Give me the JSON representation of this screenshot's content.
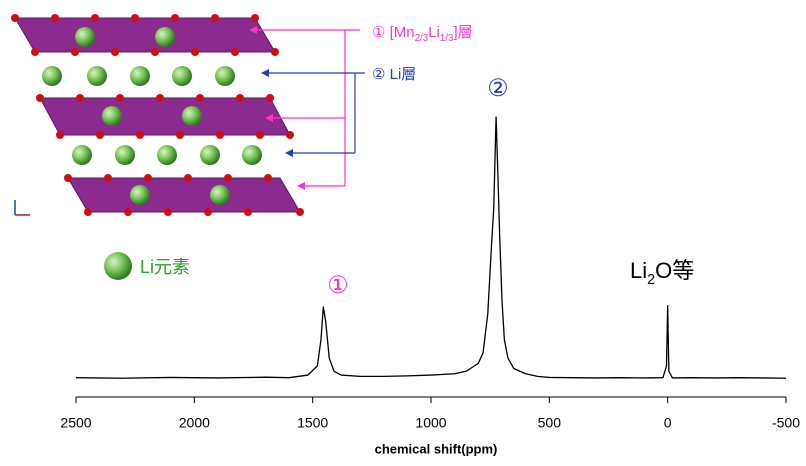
{
  "chart_data": {
    "type": "line",
    "xlabel": "chemical shift(ppm)",
    "xlim": [
      2500,
      -500
    ],
    "xticks": [
      2500,
      2000,
      1500,
      1000,
      500,
      0,
      -500
    ],
    "ylim": [
      0,
      100
    ],
    "x": [
      2500,
      2300,
      2100,
      1900,
      1700,
      1600,
      1520,
      1480,
      1465,
      1455,
      1445,
      1430,
      1410,
      1380,
      1300,
      1200,
      1100,
      1000,
      900,
      850,
      800,
      780,
      760,
      745,
      735,
      725,
      718,
      710,
      700,
      690,
      675,
      650,
      600,
      550,
      500,
      400,
      300,
      200,
      100,
      20,
      5,
      0,
      -5,
      -20,
      -100,
      -200,
      -300,
      -400,
      -500
    ],
    "series": [
      {
        "color": "#000000",
        "values": [
          0.5,
          0.3,
          0.6,
          0.4,
          0.7,
          0.5,
          1.5,
          5,
          15,
          27.5,
          22,
          8,
          3,
          1.5,
          1,
          1,
          1.2,
          1.5,
          2,
          3,
          6,
          10,
          25,
          50,
          65,
          100,
          80,
          55,
          30,
          15,
          8,
          4,
          2,
          1,
          0.6,
          0.5,
          0.4,
          0.5,
          0.4,
          0.5,
          5,
          28,
          3,
          0.4,
          0.5,
          0.4,
          0.5,
          0.4,
          0.3
        ]
      }
    ],
    "annotations": [
      {
        "parts": [
          "①"
        ],
        "color": "#ff33cc"
      },
      {
        "parts": [
          "②"
        ],
        "color": "#1f3fbf"
      },
      {
        "parts": [
          "Li",
          "2",
          "O等"
        ],
        "color": "#000000"
      },
      {
        "parts": [
          "① [Mn",
          "2/3",
          "Li",
          "1/3",
          "]層"
        ],
        "color": "#ff33cc"
      },
      {
        "parts": [
          "② Li層"
        ],
        "color": "#1f3fbf"
      },
      {
        "parts": [
          "Li元素"
        ],
        "color": "#2ca02c"
      }
    ]
  }
}
